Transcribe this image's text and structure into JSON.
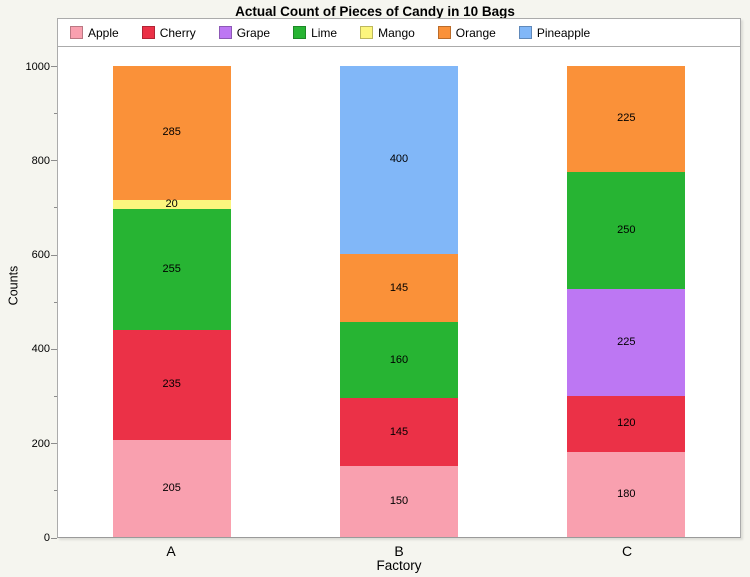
{
  "chart_data": {
    "type": "bar",
    "stacked": true,
    "title": "Actual Count of Pieces of Candy in 10 Bags",
    "xlabel": "Factory",
    "ylabel": "Counts",
    "ylim": [
      0,
      1000
    ],
    "y_major_ticks": [
      0,
      200,
      400,
      600,
      800,
      1000
    ],
    "y_minor_ticks": [
      100,
      300,
      500,
      700,
      900
    ],
    "grid": false,
    "legend_position": "top",
    "plot_background": "#FFFFFF",
    "figure_background": "#F5F5EF",
    "categories": [
      "A",
      "B",
      "C"
    ],
    "series": [
      {
        "name": "Apple",
        "color": "#F9A0AF",
        "values": [
          205,
          150,
          180
        ]
      },
      {
        "name": "Cherry",
        "color": "#EB3147",
        "values": [
          235,
          145,
          120
        ]
      },
      {
        "name": "Grape",
        "color": "#BD77F3",
        "values": [
          0,
          0,
          225
        ]
      },
      {
        "name": "Lime",
        "color": "#27B433",
        "values": [
          255,
          160,
          250
        ]
      },
      {
        "name": "Mango",
        "color": "#FCF67E",
        "values": [
          20,
          0,
          0
        ]
      },
      {
        "name": "Orange",
        "color": "#FA9139",
        "values": [
          285,
          145,
          225
        ]
      },
      {
        "name": "Pineapple",
        "color": "#81B7F8",
        "values": [
          0,
          400,
          0
        ]
      }
    ]
  }
}
